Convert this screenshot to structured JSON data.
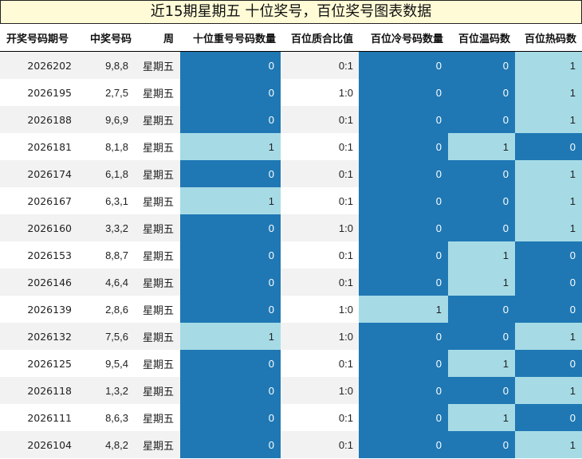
{
  "title": "近15期星期五 十位奖号，百位奖号图表数据",
  "columns": [
    "开奖号码期号",
    "中奖号码",
    "周",
    "十位重号号码数量",
    "百位质合比值",
    "百位冷号码数量",
    "百位温码数",
    "百位热码数"
  ],
  "colors": {
    "dark": "#1f78b4",
    "light": "#a6dbe6",
    "alt_row": "#f2f2f2",
    "title_bg": "#fffbd6"
  },
  "rows": [
    {
      "issue": "2026202",
      "number": "9,8,8",
      "week": "星期五",
      "tens_repeat": "0",
      "hundreds_ratio": "0:1",
      "hundreds_cold": "0",
      "hundreds_warm": "0",
      "hundreds_hot": "1"
    },
    {
      "issue": "2026195",
      "number": "2,7,5",
      "week": "星期五",
      "tens_repeat": "0",
      "hundreds_ratio": "1:0",
      "hundreds_cold": "0",
      "hundreds_warm": "0",
      "hundreds_hot": "1"
    },
    {
      "issue": "2026188",
      "number": "9,6,9",
      "week": "星期五",
      "tens_repeat": "0",
      "hundreds_ratio": "0:1",
      "hundreds_cold": "0",
      "hundreds_warm": "0",
      "hundreds_hot": "1"
    },
    {
      "issue": "2026181",
      "number": "8,1,8",
      "week": "星期五",
      "tens_repeat": "1",
      "hundreds_ratio": "0:1",
      "hundreds_cold": "0",
      "hundreds_warm": "1",
      "hundreds_hot": "0"
    },
    {
      "issue": "2026174",
      "number": "6,1,8",
      "week": "星期五",
      "tens_repeat": "0",
      "hundreds_ratio": "0:1",
      "hundreds_cold": "0",
      "hundreds_warm": "0",
      "hundreds_hot": "1"
    },
    {
      "issue": "2026167",
      "number": "6,3,1",
      "week": "星期五",
      "tens_repeat": "1",
      "hundreds_ratio": "0:1",
      "hundreds_cold": "0",
      "hundreds_warm": "0",
      "hundreds_hot": "1"
    },
    {
      "issue": "2026160",
      "number": "3,3,2",
      "week": "星期五",
      "tens_repeat": "0",
      "hundreds_ratio": "1:0",
      "hundreds_cold": "0",
      "hundreds_warm": "0",
      "hundreds_hot": "1"
    },
    {
      "issue": "2026153",
      "number": "8,8,7",
      "week": "星期五",
      "tens_repeat": "0",
      "hundreds_ratio": "0:1",
      "hundreds_cold": "0",
      "hundreds_warm": "1",
      "hundreds_hot": "0"
    },
    {
      "issue": "2026146",
      "number": "4,6,4",
      "week": "星期五",
      "tens_repeat": "0",
      "hundreds_ratio": "0:1",
      "hundreds_cold": "0",
      "hundreds_warm": "1",
      "hundreds_hot": "0"
    },
    {
      "issue": "2026139",
      "number": "2,8,6",
      "week": "星期五",
      "tens_repeat": "0",
      "hundreds_ratio": "1:0",
      "hundreds_cold": "1",
      "hundreds_warm": "0",
      "hundreds_hot": "0"
    },
    {
      "issue": "2026132",
      "number": "7,5,6",
      "week": "星期五",
      "tens_repeat": "1",
      "hundreds_ratio": "1:0",
      "hundreds_cold": "0",
      "hundreds_warm": "0",
      "hundreds_hot": "1"
    },
    {
      "issue": "2026125",
      "number": "9,5,4",
      "week": "星期五",
      "tens_repeat": "0",
      "hundreds_ratio": "0:1",
      "hundreds_cold": "0",
      "hundreds_warm": "1",
      "hundreds_hot": "0"
    },
    {
      "issue": "2026118",
      "number": "1,3,2",
      "week": "星期五",
      "tens_repeat": "0",
      "hundreds_ratio": "1:0",
      "hundreds_cold": "0",
      "hundreds_warm": "0",
      "hundreds_hot": "1"
    },
    {
      "issue": "2026111",
      "number": "8,6,3",
      "week": "星期五",
      "tens_repeat": "0",
      "hundreds_ratio": "0:1",
      "hundreds_cold": "0",
      "hundreds_warm": "1",
      "hundreds_hot": "0"
    },
    {
      "issue": "2026104",
      "number": "4,8,2",
      "week": "星期五",
      "tens_repeat": "0",
      "hundreds_ratio": "0:1",
      "hundreds_cold": "0",
      "hundreds_warm": "0",
      "hundreds_hot": "1"
    }
  ]
}
